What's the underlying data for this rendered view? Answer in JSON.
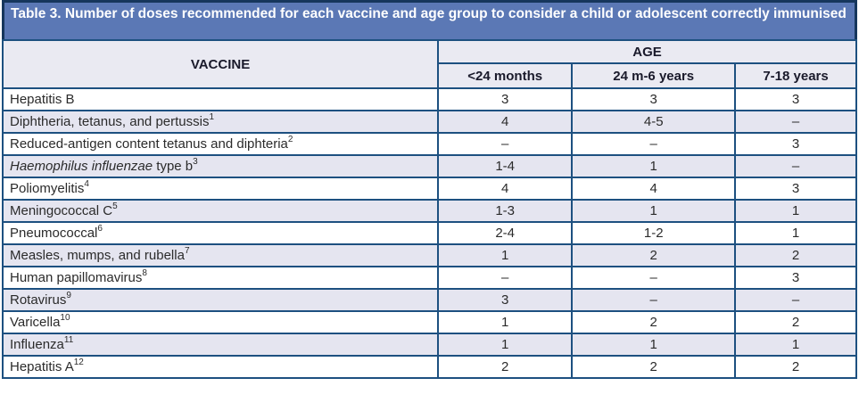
{
  "title": "Table 3. Number of doses recommended for each vaccine and age group to consider a child or adolescent correctly immunised",
  "colors": {
    "title_bg": "#5b78b5",
    "outer_border": "#16365c",
    "grid_border": "#1d5080",
    "header_bg": "#eaeaf2",
    "row_alt_bg": "#e5e5f0",
    "row_bg": "#ffffff",
    "title_text": "#ffffff",
    "body_text": "#2b2b2b"
  },
  "table": {
    "vaccine_header": "VACCINE",
    "age_header": "AGE",
    "age_columns": [
      "<24 months",
      "24 m-6 years",
      "7-18 years"
    ],
    "rows": [
      {
        "vaccine": [
          {
            "text": "Hepatitis B"
          }
        ],
        "doses": [
          "3",
          "3",
          "3"
        ]
      },
      {
        "vaccine": [
          {
            "text": "Diphtheria, tetanus, and pertussis"
          },
          {
            "sup": "1"
          }
        ],
        "doses": [
          "4",
          "4-5",
          "–"
        ]
      },
      {
        "vaccine": [
          {
            "text": "Reduced-antigen content tetanus and diphteria"
          },
          {
            "sup": "2"
          }
        ],
        "doses": [
          "–",
          "–",
          "3"
        ]
      },
      {
        "vaccine": [
          {
            "text": "Haemophilus influenzae",
            "italic": true
          },
          {
            "text": " type b"
          },
          {
            "sup": "3"
          }
        ],
        "doses": [
          "1-4",
          "1",
          "–"
        ]
      },
      {
        "vaccine": [
          {
            "text": "Poliomyelitis"
          },
          {
            "sup": "4"
          }
        ],
        "doses": [
          "4",
          "4",
          "3"
        ]
      },
      {
        "vaccine": [
          {
            "text": "Meningococcal C"
          },
          {
            "sup": "5"
          }
        ],
        "doses": [
          "1-3",
          "1",
          "1"
        ]
      },
      {
        "vaccine": [
          {
            "text": "Pneumococcal"
          },
          {
            "sup": "6"
          }
        ],
        "doses": [
          "2-4",
          "1-2",
          "1"
        ]
      },
      {
        "vaccine": [
          {
            "text": "Measles, mumps, and rubella"
          },
          {
            "sup": "7"
          }
        ],
        "doses": [
          "1",
          "2",
          "2"
        ]
      },
      {
        "vaccine": [
          {
            "text": "Human papillomavirus"
          },
          {
            "sup": "8"
          }
        ],
        "doses": [
          "–",
          "–",
          "3"
        ]
      },
      {
        "vaccine": [
          {
            "text": "Rotavirus"
          },
          {
            "sup": "9"
          }
        ],
        "doses": [
          "3",
          "–",
          "–"
        ]
      },
      {
        "vaccine": [
          {
            "text": "Varicella"
          },
          {
            "sup": "10"
          }
        ],
        "doses": [
          "1",
          "2",
          "2"
        ]
      },
      {
        "vaccine": [
          {
            "text": "Influenza"
          },
          {
            "sup": "11"
          }
        ],
        "doses": [
          "1",
          "1",
          "1"
        ]
      },
      {
        "vaccine": [
          {
            "text": "Hepatitis A"
          },
          {
            "sup": "12"
          }
        ],
        "doses": [
          "2",
          "2",
          "2"
        ]
      }
    ]
  }
}
